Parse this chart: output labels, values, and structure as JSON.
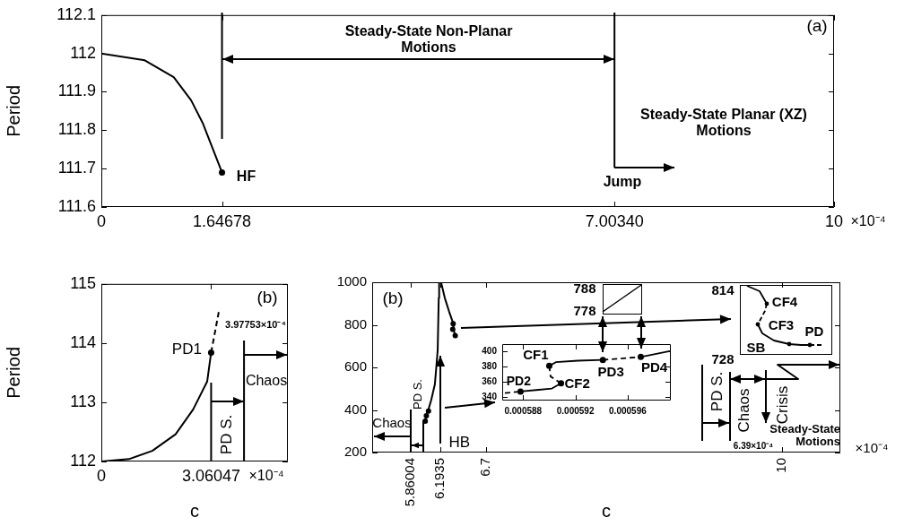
{
  "chart_data": [
    {
      "type": "line",
      "ylabel": "Period",
      "xlim": [
        0,
        10
      ],
      "xticks": [
        0,
        1.64678,
        {
          "value": 7.0034,
          "label": "7.00340"
        },
        10
      ],
      "ylim": [
        111.6,
        112.1
      ],
      "yticks": [
        111.6,
        111.7,
        111.8,
        111.9,
        112,
        112.1
      ],
      "series": [
        {
          "type": "line",
          "color": "#000000",
          "marker": "none",
          "x": [
            0,
            0.593,
            0.988,
            1.225,
            1.383,
            1.64678
          ],
          "values": [
            112.0,
            111.982,
            111.938,
            111.878,
            111.819,
            111.69
          ]
        },
        {
          "type": "scatter",
          "color": "#000000",
          "marker": "circle",
          "x": [
            1.64678
          ],
          "values": [
            111.69
          ]
        }
      ],
      "ref_lines": [
        {
          "axis": "x",
          "value": 1.64678
        },
        {
          "axis": "x",
          "value": 7.0034
        }
      ],
      "annotations": [
        "(a)",
        "Steady-State Non-Planar Motions",
        {
          "text": "HF",
          "x": 1.64678,
          "y": 111.69
        },
        "Jump",
        "Steady-State Planar (XZ) Motions",
        "×10⁻⁴"
      ]
    },
    {
      "type": "line",
      "ylabel": "Period",
      "xlabel": "c",
      "xlim": [
        0,
        5.2
      ],
      "xticks": [
        0,
        3.06047
      ],
      "ylim": [
        112,
        115
      ],
      "yticks": [
        112,
        113,
        114,
        115
      ],
      "series": [
        {
          "type": "line",
          "color": "#000000",
          "marker": "none",
          "x": [
            0,
            0.77,
            1.42,
            2.07,
            2.56,
            2.95,
            3.06047
          ],
          "values": [
            112,
            112.04,
            112.18,
            112.46,
            112.88,
            113.35,
            113.84
          ]
        },
        {
          "type": "line",
          "color": "#000000",
          "marker": "none",
          "line_style": "dashed",
          "x": [
            3.06047,
            3.278
          ],
          "values": [
            113.84,
            114.54
          ]
        },
        {
          "type": "scatter",
          "color": "#000000",
          "marker": "circle",
          "x": [
            3.06047
          ],
          "values": [
            113.84
          ]
        }
      ],
      "ref_lines": [
        {
          "axis": "x",
          "value": 3.06047
        },
        {
          "axis": "x",
          "value": 3.97753
        }
      ],
      "annotations": [
        "(b)",
        {
          "text": "PD1",
          "x": 3.06047,
          "y": 113.84
        },
        "3.97753×10⁻⁴",
        "PD S.",
        "Chaos",
        "×10⁻⁴"
      ]
    },
    {
      "type": "line",
      "xlabel": "c",
      "xlim": [
        5.43,
        10.65
      ],
      "xticks": [
        5.86004,
        6.1935,
        6.7,
        10
      ],
      "ylim": [
        200,
        1000
      ],
      "yticks": [
        200,
        400,
        600,
        800,
        1000
      ],
      "series": [
        {
          "type": "line",
          "color": "#000000",
          "marker": "none",
          "x": [
            6.022,
            6.0387,
            6.0578,
            6.0887,
            6.1292,
            6.1602,
            6.1721,
            6.1768
          ],
          "values": [
            347,
            384,
            403,
            447,
            521,
            679,
            926,
            1000
          ]
        },
        {
          "type": "line",
          "color": "#000000",
          "marker": "none",
          "x": [
            6.1981,
            6.24,
            6.2864,
            6.3329,
            6.3376,
            6.3561
          ],
          "values": [
            1000,
            926,
            864,
            808,
            779,
            746
          ]
        },
        {
          "type": "scatter",
          "color": "#000000",
          "marker": "circle",
          "x": [
            6.022,
            6.0339,
            6.0578,
            6.3329,
            6.3282,
            6.3561
          ],
          "values": [
            347,
            373,
            395,
            805,
            779,
            749
          ]
        }
      ],
      "ref_lines": [
        {
          "axis": "x",
          "value": 5.86004
        }
      ],
      "annotations": [
        "(b)",
        "Chaos",
        "PD S.",
        {
          "text": "HB",
          "x": 6.1935,
          "y": 650
        },
        "PD S.",
        "Chaos",
        "Crisis",
        "Steady-State Motions",
        "6.39×10⁻⁴",
        "×10⁻⁴"
      ]
    },
    {
      "type": "line",
      "xlim": [
        0.0005864,
        0.0005993
      ],
      "xticks": [
        0.000588,
        0.000592,
        0.000596
      ],
      "ylim": [
        335,
        410
      ],
      "yticks": [
        340,
        360,
        380,
        400
      ],
      "series": [
        {
          "type": "line",
          "color": "#000000",
          "marker": "none",
          "line_style": "dashed",
          "x": [
            0.0005866,
            0.0005878
          ],
          "values": [
            345,
            347
          ]
        },
        {
          "type": "line",
          "color": "#000000",
          "marker": "none",
          "x": [
            0.0005878,
            0.000589,
            0.0005902,
            0.0005909
          ],
          "values": [
            347,
            349,
            351,
            358
          ]
        },
        {
          "type": "line",
          "color": "#000000",
          "marker": "none",
          "line_style": "dashed",
          "x": [
            0.0005909,
            0.0005901,
            0.00059
          ],
          "values": [
            358,
            367,
            381
          ]
        },
        {
          "type": "line",
          "color": "#000000",
          "marker": "none",
          "x": [
            0.00059,
            0.0005905,
            0.0005922,
            0.0005941
          ],
          "values": [
            381,
            386,
            388,
            389
          ]
        },
        {
          "type": "line",
          "color": "#000000",
          "marker": "none",
          "line_style": "dashed",
          "x": [
            0.0005941,
            0.000597
          ],
          "values": [
            389,
            393
          ]
        },
        {
          "type": "line",
          "color": "#000000",
          "marker": "none",
          "x": [
            0.000597,
            0.0005993
          ],
          "values": [
            393,
            401
          ]
        },
        {
          "type": "scatter",
          "color": "#000000",
          "marker": "circle",
          "x": [
            0.0005878,
            0.00059,
            0.0005909,
            0.0005941,
            0.000597
          ],
          "values": [
            347,
            381,
            358,
            389,
            393
          ]
        }
      ],
      "annotations": [
        {
          "text": "PD2",
          "x": 0.0005878,
          "y": 347
        },
        {
          "text": "CF1",
          "x": 0.00059,
          "y": 381
        },
        {
          "text": "CF2",
          "x": 0.0005909,
          "y": 358
        },
        {
          "text": "PD3",
          "x": 0.0005941,
          "y": 389
        },
        {
          "text": "PD4",
          "x": 0.000597,
          "y": 393
        }
      ]
    },
    {
      "type": "other",
      "annotations": [
        "788",
        "778"
      ]
    },
    {
      "type": "other",
      "annotations": [
        "814",
        "728",
        "CF4",
        "CF3",
        "SB",
        "PD"
      ]
    }
  ]
}
